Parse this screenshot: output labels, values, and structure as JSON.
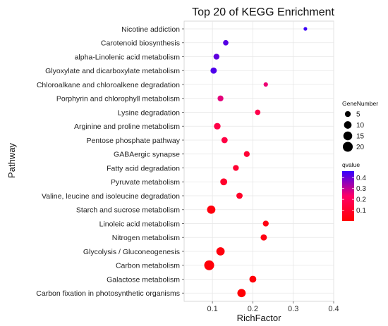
{
  "chart_data": {
    "type": "scatter",
    "title": "Top 20 of KEGG Enrichment",
    "xlabel": "RichFactor",
    "ylabel": "Pathway",
    "xlim": [
      0.03,
      0.4
    ],
    "xticks": [
      0.1,
      0.2,
      0.3,
      0.4
    ],
    "grid": true,
    "points": [
      {
        "pathway": "Nicotine addiction",
        "rich_factor": 0.33,
        "gene_number": 1,
        "qvalue": 0.45
      },
      {
        "pathway": "Carotenoid biosynthesis",
        "rich_factor": 0.133,
        "gene_number": 4,
        "qvalue": 0.42
      },
      {
        "pathway": "alpha-Linolenic acid metabolism",
        "rich_factor": 0.11,
        "gene_number": 5,
        "qvalue": 0.41
      },
      {
        "pathway": "Glyoxylate and dicarboxylate metabolism",
        "rich_factor": 0.103,
        "gene_number": 6,
        "qvalue": 0.43
      },
      {
        "pathway": "Chloroalkane and chloroalkene degradation",
        "rich_factor": 0.232,
        "gene_number": 2,
        "qvalue": 0.25
      },
      {
        "pathway": "Porphyrin and chlorophyll metabolism",
        "rich_factor": 0.12,
        "gene_number": 5,
        "qvalue": 0.26
      },
      {
        "pathway": "Lysine degradation",
        "rich_factor": 0.212,
        "gene_number": 4,
        "qvalue": 0.17
      },
      {
        "pathway": "Arginine and proline metabolism",
        "rich_factor": 0.112,
        "gene_number": 7,
        "qvalue": 0.16
      },
      {
        "pathway": "Pentose phosphate pathway",
        "rich_factor": 0.13,
        "gene_number": 6,
        "qvalue": 0.15
      },
      {
        "pathway": "GABAergic synapse",
        "rich_factor": 0.185,
        "gene_number": 5,
        "qvalue": 0.12
      },
      {
        "pathway": "Fatty acid degradation",
        "rich_factor": 0.158,
        "gene_number": 5,
        "qvalue": 0.11
      },
      {
        "pathway": "Pyruvate metabolism",
        "rich_factor": 0.128,
        "gene_number": 8,
        "qvalue": 0.1
      },
      {
        "pathway": "Valine, leucine and isoleucine degradation",
        "rich_factor": 0.167,
        "gene_number": 6,
        "qvalue": 0.09
      },
      {
        "pathway": "Starch and sucrose metabolism",
        "rich_factor": 0.097,
        "gene_number": 13,
        "qvalue": 0.03
      },
      {
        "pathway": "Linoleic acid metabolism",
        "rich_factor": 0.232,
        "gene_number": 5,
        "qvalue": 0.04
      },
      {
        "pathway": "Nitrogen metabolism",
        "rich_factor": 0.227,
        "gene_number": 6,
        "qvalue": 0.04
      },
      {
        "pathway": "Glycolysis / Gluconeogenesis",
        "rich_factor": 0.12,
        "gene_number": 13,
        "qvalue": 0.03
      },
      {
        "pathway": "Carbon metabolism",
        "rich_factor": 0.092,
        "gene_number": 20,
        "qvalue": 0.02
      },
      {
        "pathway": "Galactose metabolism",
        "rich_factor": 0.2,
        "gene_number": 8,
        "qvalue": 0.02
      },
      {
        "pathway": "Carbon fixation in photosynthetic organisms",
        "rich_factor": 0.172,
        "gene_number": 13,
        "qvalue": 0.01
      }
    ],
    "size_legend": {
      "title": "GeneNumber",
      "values": [
        5,
        10,
        15,
        20
      ]
    },
    "color_legend": {
      "title": "qvalue",
      "ticks": [
        0.4,
        0.3,
        0.2,
        0.1
      ],
      "range": [
        0.0,
        0.46
      ],
      "low_color": "#ff0000",
      "high_color": "#3300ff"
    },
    "legend_position": "right"
  }
}
